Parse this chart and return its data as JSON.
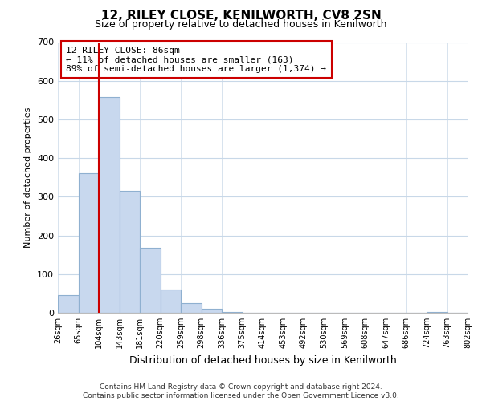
{
  "title": "12, RILEY CLOSE, KENILWORTH, CV8 2SN",
  "subtitle": "Size of property relative to detached houses in Kenilworth",
  "xlabel": "Distribution of detached houses by size in Kenilworth",
  "ylabel": "Number of detached properties",
  "bar_values": [
    45,
    360,
    557,
    315,
    168,
    60,
    25,
    10,
    3,
    0,
    0,
    0,
    0,
    0,
    0,
    0,
    0,
    0,
    3,
    0
  ],
  "bar_labels": [
    "26sqm",
    "65sqm",
    "104sqm",
    "143sqm",
    "181sqm",
    "220sqm",
    "259sqm",
    "298sqm",
    "336sqm",
    "375sqm",
    "414sqm",
    "453sqm",
    "492sqm",
    "530sqm",
    "569sqm",
    "608sqm",
    "647sqm",
    "686sqm",
    "724sqm",
    "763sqm",
    "802sqm"
  ],
  "bar_color": "#c8d8ee",
  "bar_edge_color": "#8fb0d0",
  "vline_x": 2,
  "vline_color": "#cc0000",
  "ylim": [
    0,
    700
  ],
  "yticks": [
    0,
    100,
    200,
    300,
    400,
    500,
    600,
    700
  ],
  "annotation_box_text": "12 RILEY CLOSE: 86sqm\n← 11% of detached houses are smaller (163)\n89% of semi-detached houses are larger (1,374) →",
  "footer_line1": "Contains HM Land Registry data © Crown copyright and database right 2024.",
  "footer_line2": "Contains public sector information licensed under the Open Government Licence v3.0.",
  "background_color": "#ffffff",
  "grid_color": "#c8d8e8"
}
